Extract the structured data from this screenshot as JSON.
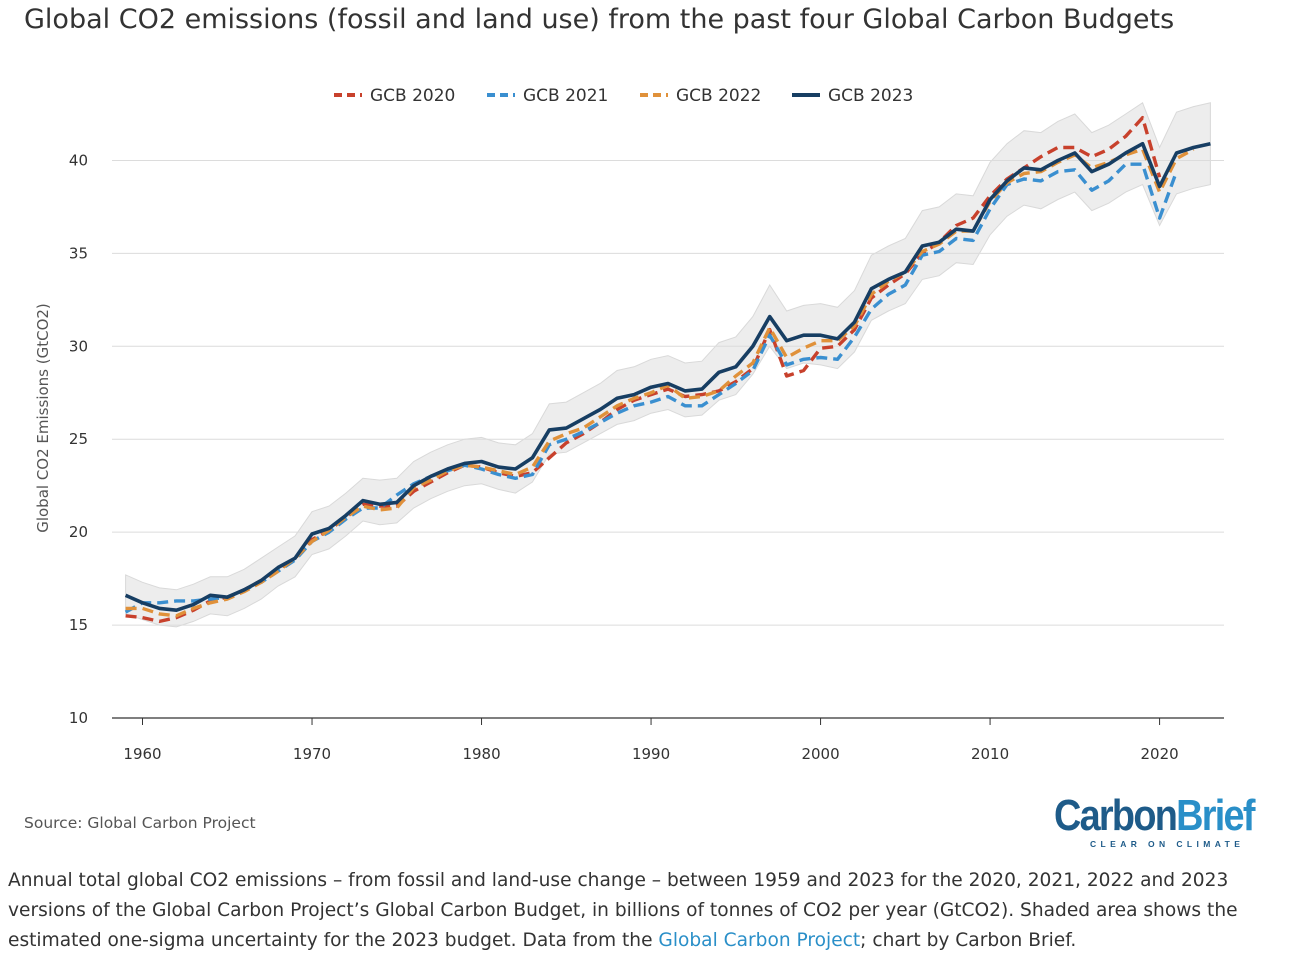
{
  "title": "Global CO2 emissions (fossil and land use) from the past four Global Carbon Budgets",
  "source": "Source: Global Carbon Project",
  "logo": {
    "name": "CarbonBrief",
    "tagline": "CLEAR ON CLIMATE"
  },
  "caption": {
    "before": "Annual total global CO2 emissions – from fossil and land-use change – between 1959 and 2023 for the 2020, 2021, 2022 and 2023 versions of the Global Carbon Project’s Global Carbon Budget, in billions of tonnes of CO2 per year (GtCO2). Shaded area shows the estimated one-sigma uncertainty for the 2023 budget. Data from the ",
    "link": "Global Carbon Project",
    "after": "; chart by Carbon Brief."
  },
  "colors": {
    "gcb2020": "#c8412c",
    "gcb2021": "#3a8fd0",
    "gcb2022": "#e0913a",
    "gcb2023": "#173e63",
    "band": "#ededed",
    "grid": "#dcdcdc"
  },
  "chart_data": {
    "type": "line",
    "title": "Global CO2 emissions (fossil and land use) from the past four Global Carbon Budgets",
    "xlabel": "",
    "ylabel": "Global CO2 Emissions (GtCO2)",
    "xlim": [
      1958.2,
      2023.8
    ],
    "ylim": [
      10,
      42.5
    ],
    "xticks": [
      1960,
      1970,
      1980,
      1990,
      2000,
      2010,
      2020
    ],
    "yticks": [
      10,
      15,
      20,
      25,
      30,
      35,
      40
    ],
    "grid": "horizontal",
    "legend": "top-center",
    "series": [
      {
        "name": "GCB 2020",
        "style": "dashed",
        "x_start": 1959,
        "values": [
          15.5,
          15.4,
          15.2,
          15.4,
          15.8,
          16.3,
          16.5,
          16.9,
          17.4,
          18.0,
          18.6,
          19.6,
          20.1,
          20.8,
          21.5,
          21.4,
          21.4,
          22.2,
          22.7,
          23.2,
          23.6,
          23.5,
          23.2,
          23.0,
          23.2,
          24.0,
          24.8,
          25.3,
          25.9,
          26.6,
          27.1,
          27.4,
          27.7,
          27.3,
          27.4,
          27.6,
          28.1,
          28.8,
          30.9,
          28.4,
          28.7,
          29.9,
          30.0,
          30.9,
          32.6,
          33.3,
          33.9,
          35.0,
          35.6,
          36.5,
          36.9,
          38.1,
          39.0,
          39.6,
          40.2,
          40.7,
          40.7,
          40.2,
          40.6,
          41.3,
          42.3,
          39.1
        ]
      },
      {
        "name": "GCB 2021",
        "style": "dashed",
        "x_start": 1959,
        "values": [
          15.7,
          16.2,
          16.2,
          16.3,
          16.3,
          16.4,
          16.5,
          16.9,
          17.3,
          17.9,
          18.5,
          19.5,
          20.0,
          20.7,
          21.3,
          21.3,
          22.0,
          22.6,
          23.0,
          23.3,
          23.6,
          23.4,
          23.1,
          22.9,
          23.1,
          24.7,
          25.0,
          25.4,
          25.9,
          26.4,
          26.8,
          27.0,
          27.3,
          26.8,
          26.8,
          27.4,
          28.0,
          28.7,
          30.6,
          29.0,
          29.3,
          29.4,
          29.3,
          30.5,
          32.0,
          32.8,
          33.3,
          34.9,
          35.1,
          35.8,
          35.7,
          37.4,
          38.7,
          39.0,
          38.9,
          39.4,
          39.5,
          38.4,
          38.9,
          39.8,
          39.8,
          36.9,
          39.4
        ]
      },
      {
        "name": "GCB 2022",
        "style": "dashed",
        "x_start": 1959,
        "values": [
          15.9,
          15.9,
          15.6,
          15.5,
          15.9,
          16.2,
          16.4,
          16.8,
          17.3,
          17.9,
          18.6,
          19.5,
          20.1,
          20.8,
          21.4,
          21.2,
          21.3,
          22.4,
          22.8,
          23.3,
          23.6,
          23.5,
          23.3,
          23.1,
          23.5,
          24.9,
          25.3,
          25.6,
          26.2,
          26.8,
          27.2,
          27.5,
          27.9,
          27.2,
          27.3,
          27.6,
          28.4,
          29.1,
          31.0,
          29.4,
          29.9,
          30.3,
          30.3,
          31.1,
          32.8,
          33.5,
          34.0,
          35.1,
          35.5,
          36.2,
          36.2,
          37.8,
          38.8,
          39.3,
          39.4,
          39.9,
          40.3,
          39.6,
          39.9,
          40.3,
          40.6,
          38.3,
          40.1,
          40.6
        ]
      },
      {
        "name": "GCB 2023",
        "style": "solid",
        "x_start": 1959,
        "values": [
          16.6,
          16.2,
          15.9,
          15.8,
          16.1,
          16.6,
          16.5,
          16.9,
          17.4,
          18.1,
          18.6,
          19.9,
          20.2,
          20.9,
          21.7,
          21.5,
          21.6,
          22.5,
          23.0,
          23.4,
          23.7,
          23.8,
          23.5,
          23.4,
          24.0,
          25.5,
          25.6,
          26.1,
          26.6,
          27.2,
          27.4,
          27.8,
          28.0,
          27.6,
          27.7,
          28.6,
          28.9,
          30.0,
          31.6,
          30.3,
          30.6,
          30.6,
          30.4,
          31.3,
          33.1,
          33.6,
          34.0,
          35.4,
          35.6,
          36.3,
          36.2,
          37.9,
          38.9,
          39.6,
          39.5,
          40.0,
          40.4,
          39.4,
          39.8,
          40.4,
          40.9,
          38.6,
          40.4,
          40.7,
          40.9
        ]
      }
    ],
    "uncertainty_band_gcb2023": {
      "x_start": 1959,
      "lower": [
        15.6,
        15.3,
        15.0,
        14.9,
        15.2,
        15.6,
        15.5,
        15.9,
        16.4,
        17.1,
        17.6,
        18.8,
        19.1,
        19.8,
        20.6,
        20.4,
        20.5,
        21.3,
        21.8,
        22.2,
        22.5,
        22.6,
        22.3,
        22.1,
        22.7,
        24.2,
        24.3,
        24.8,
        25.3,
        25.8,
        26.0,
        26.4,
        26.6,
        26.2,
        26.3,
        27.1,
        27.4,
        28.5,
        30.0,
        28.8,
        29.1,
        29.0,
        28.8,
        29.7,
        31.4,
        31.9,
        32.3,
        33.6,
        33.8,
        34.5,
        34.4,
        36.0,
        37.0,
        37.6,
        37.4,
        37.9,
        38.3,
        37.3,
        37.7,
        38.3,
        38.7,
        36.5,
        38.2,
        38.5,
        38.7
      ],
      "upper": [
        17.7,
        17.3,
        17.0,
        16.9,
        17.2,
        17.6,
        17.6,
        18.0,
        18.6,
        19.2,
        19.8,
        21.1,
        21.4,
        22.1,
        22.9,
        22.8,
        22.9,
        23.8,
        24.3,
        24.7,
        25.0,
        25.1,
        24.8,
        24.7,
        25.3,
        26.9,
        27.0,
        27.5,
        28.0,
        28.7,
        28.9,
        29.3,
        29.5,
        29.1,
        29.2,
        30.2,
        30.5,
        31.6,
        33.3,
        31.9,
        32.2,
        32.3,
        32.1,
        33.0,
        34.9,
        35.4,
        35.8,
        37.3,
        37.5,
        38.2,
        38.1,
        39.9,
        40.9,
        41.6,
        41.5,
        42.1,
        42.5,
        41.5,
        41.9,
        42.5,
        43.1,
        40.7,
        42.6,
        42.9,
        43.1
      ]
    }
  }
}
